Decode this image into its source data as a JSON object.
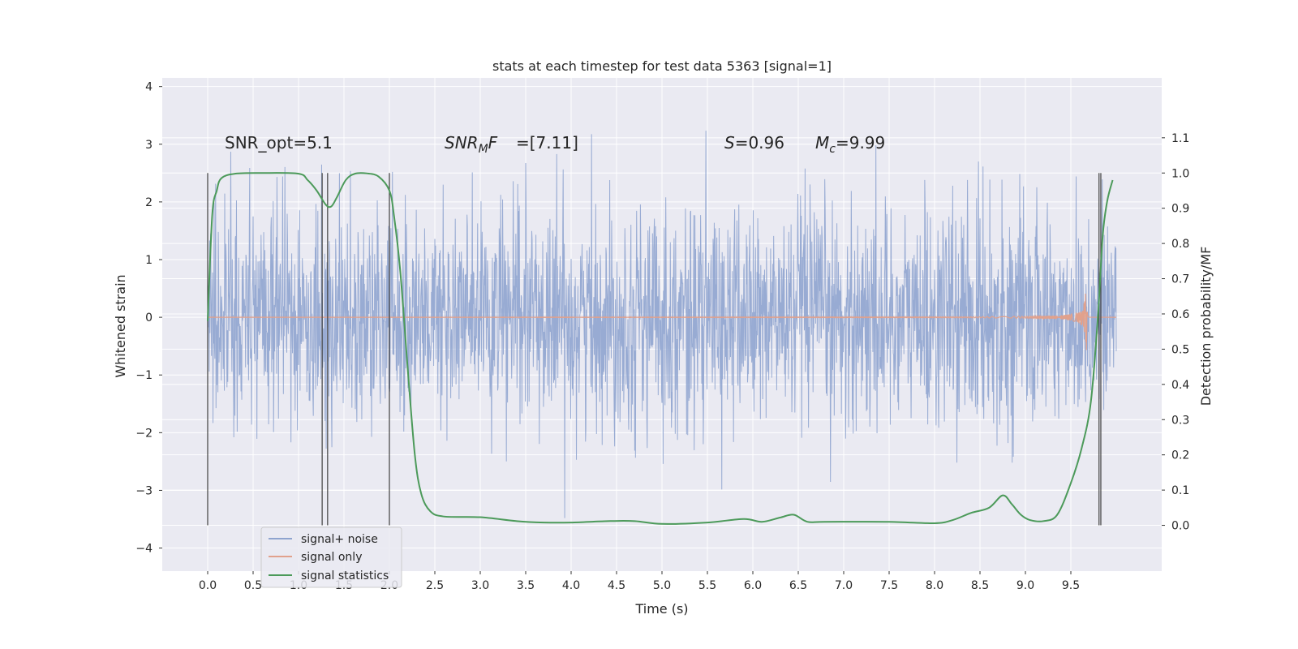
{
  "chart_data": {
    "type": "line",
    "title": "stats at each timestep for test data 5363 [signal=1]",
    "xlabel": "Time (s)",
    "ylabel": "Whitened strain",
    "ylabel_right": "Detection probability/MF",
    "xlim": [
      -0.5,
      10.5
    ],
    "ylim": [
      -4.4,
      4.15
    ],
    "ylim_right": [
      -0.13,
      1.27
    ],
    "grid": true,
    "legend_position": "lower-left",
    "xticks": [
      "0.0",
      "0.5",
      "1.0",
      "1.5",
      "2.0",
      "2.5",
      "3.0",
      "3.5",
      "4.0",
      "4.5",
      "5.0",
      "5.5",
      "6.0",
      "6.5",
      "7.0",
      "7.5",
      "8.0",
      "8.5",
      "9.0",
      "9.5"
    ],
    "yticks": [
      "4",
      "3",
      "2",
      "1",
      "0",
      "−1",
      "−2",
      "−3",
      "−4"
    ],
    "yticks_right": [
      "1.1",
      "1.0",
      "0.9",
      "0.8",
      "0.7",
      "0.6",
      "0.5",
      "0.4",
      "0.3",
      "0.2",
      "0.1",
      "0.0"
    ],
    "annotations": [
      {
        "text": "SNR_opt=5.1",
        "x": 0.2,
        "y": 2.95
      },
      {
        "text_html": "SNR<tspan font-size='14' dy='4'>M</tspan><tspan dy='-4'>F</tspan>=[7.11]",
        "label": "SNR_MF=[7.11]",
        "x": 2.6,
        "y": 2.95,
        "italic_prefix": true
      },
      {
        "label": "S=0.96",
        "x": 5.62,
        "y": 2.95
      },
      {
        "label": "M_c=9.99",
        "x": 6.62,
        "y": 2.95
      }
    ],
    "annotation_text": {
      "snr_opt": "SNR_opt=5.1",
      "snr_mf_main": "SNR",
      "snr_mf_sub": "M",
      "snr_mf_rest": "F=[7.11]",
      "s_sym": "S",
      "s_val": "=0.96",
      "mc_sym": "M",
      "mc_sub": "c",
      "mc_val": "=9.99"
    },
    "vertical_lines_x": [
      0.0,
      1.26,
      1.32,
      2.0,
      9.81,
      9.83
    ],
    "series": [
      {
        "name": "signal+ noise",
        "color": "#8fa4cf",
        "axis": "left",
        "kind": "noise",
        "x_range": [
          0.0,
          10.0
        ],
        "amplitude_std": 0.95,
        "envelope": [
          -4.05,
          3.8
        ]
      },
      {
        "name": "signal only",
        "color": "#e1a18c",
        "axis": "left",
        "kind": "chirp",
        "x_range": [
          0.0,
          9.7
        ],
        "peak_amplitude": 0.6,
        "merger_time": 9.68
      },
      {
        "name": "signal statistics",
        "color": "#4c9a5a",
        "axis": "right",
        "points": [
          [
            0.0,
            0.58
          ],
          [
            0.05,
            0.88
          ],
          [
            0.1,
            0.95
          ],
          [
            0.15,
            0.985
          ],
          [
            0.3,
            0.998
          ],
          [
            0.6,
            1.0
          ],
          [
            1.0,
            0.998
          ],
          [
            1.1,
            0.98
          ],
          [
            1.2,
            0.95
          ],
          [
            1.3,
            0.91
          ],
          [
            1.36,
            0.905
          ],
          [
            1.42,
            0.93
          ],
          [
            1.52,
            0.98
          ],
          [
            1.62,
            0.998
          ],
          [
            1.75,
            0.999
          ],
          [
            1.88,
            0.99
          ],
          [
            2.0,
            0.95
          ],
          [
            2.05,
            0.88
          ],
          [
            2.12,
            0.72
          ],
          [
            2.2,
            0.45
          ],
          [
            2.28,
            0.2
          ],
          [
            2.35,
            0.09
          ],
          [
            2.45,
            0.04
          ],
          [
            2.6,
            0.025
          ],
          [
            3.0,
            0.023
          ],
          [
            3.4,
            0.012
          ],
          [
            3.7,
            0.008
          ],
          [
            4.0,
            0.008
          ],
          [
            4.4,
            0.012
          ],
          [
            4.7,
            0.012
          ],
          [
            5.0,
            0.004
          ],
          [
            5.5,
            0.008
          ],
          [
            5.9,
            0.018
          ],
          [
            6.1,
            0.01
          ],
          [
            6.3,
            0.022
          ],
          [
            6.45,
            0.03
          ],
          [
            6.6,
            0.01
          ],
          [
            6.8,
            0.01
          ],
          [
            7.5,
            0.01
          ],
          [
            8.0,
            0.006
          ],
          [
            8.2,
            0.015
          ],
          [
            8.4,
            0.035
          ],
          [
            8.6,
            0.05
          ],
          [
            8.75,
            0.085
          ],
          [
            8.85,
            0.06
          ],
          [
            8.95,
            0.03
          ],
          [
            9.05,
            0.015
          ],
          [
            9.2,
            0.012
          ],
          [
            9.35,
            0.03
          ],
          [
            9.5,
            0.12
          ],
          [
            9.62,
            0.22
          ],
          [
            9.72,
            0.35
          ],
          [
            9.8,
            0.6
          ],
          [
            9.85,
            0.82
          ],
          [
            9.9,
            0.92
          ],
          [
            9.96,
            0.98
          ]
        ]
      }
    ],
    "legend": [
      {
        "label": "signal+ noise",
        "color": "#8fa4cf"
      },
      {
        "label": "signal only",
        "color": "#e1a18c"
      },
      {
        "label": "signal statistics",
        "color": "#4c9a5a"
      }
    ]
  }
}
